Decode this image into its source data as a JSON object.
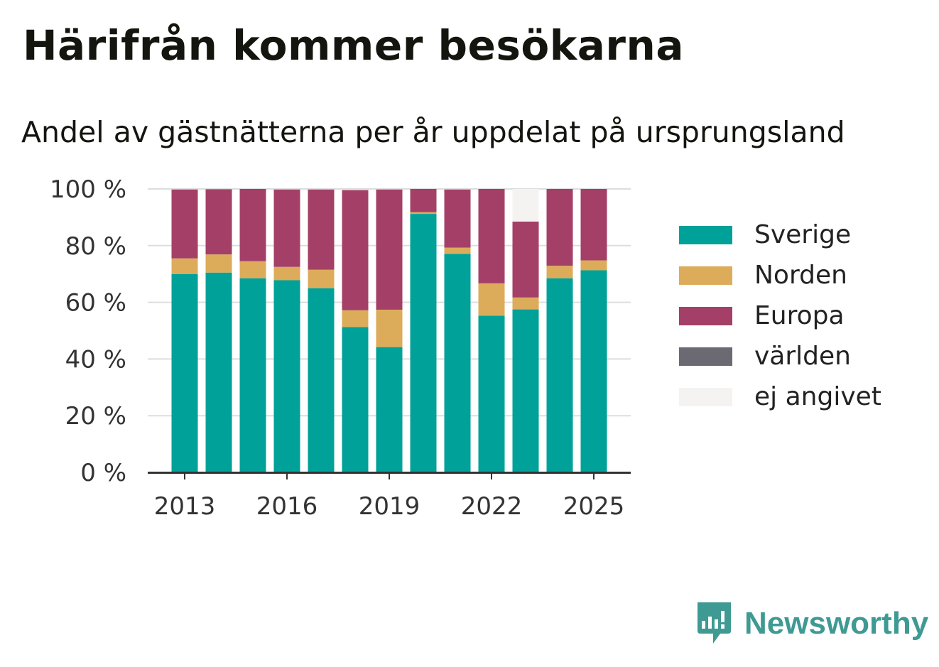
{
  "header": {
    "title": "Härifrån kommer besökarna",
    "subtitle": "Andel av gästnätterna per år uppdelat på ursprungsland"
  },
  "chart_data": {
    "type": "bar",
    "stacked": true,
    "categories": [
      "2013",
      "2014",
      "2015",
      "2016",
      "2017",
      "2018",
      "2019",
      "2020",
      "2021",
      "2022",
      "2023",
      "2024",
      "2025"
    ],
    "x_tick_labels": [
      "2013",
      "2016",
      "2019",
      "2022",
      "2025"
    ],
    "y_tick_labels": [
      "0 %",
      "20 %",
      "40 %",
      "60 %",
      "80 %",
      "100 %"
    ],
    "y_ticks": [
      0,
      20,
      40,
      60,
      80,
      100
    ],
    "ylim": [
      0,
      100
    ],
    "grid": true,
    "legend_position": "right",
    "series": [
      {
        "name": "Sverige",
        "color": "#00a198",
        "values": [
          70,
          70.5,
          68.5,
          67.8,
          65,
          51.3,
          44.2,
          91.2,
          77.1,
          55.3,
          57.5,
          68.5,
          71.3
        ]
      },
      {
        "name": "Norden",
        "color": "#dcac5b",
        "values": [
          5.5,
          6.4,
          6,
          4.7,
          6.5,
          5.9,
          13.2,
          0.6,
          2.2,
          11.4,
          4.2,
          4.4,
          3.5
        ]
      },
      {
        "name": "Europa",
        "color": "#a44067",
        "values": [
          24.3,
          23,
          25.5,
          27.3,
          28.3,
          42.4,
          42.4,
          8.2,
          20.5,
          33.3,
          26.8,
          27.1,
          25.2
        ]
      },
      {
        "name": "världen",
        "color": "#6b6a72",
        "values": [
          0,
          0,
          0,
          0,
          0,
          0,
          0,
          0,
          0,
          0,
          0,
          0,
          0
        ]
      },
      {
        "name": "ej angivet",
        "color": "#f4f3f2",
        "values": [
          0,
          0,
          0,
          0,
          0,
          0,
          0,
          0,
          0,
          0,
          11.5,
          0,
          0
        ]
      }
    ]
  },
  "brand": {
    "name": "Newsworthy",
    "icon": "newsworthy-logo-icon",
    "color": "#3e9a93"
  }
}
